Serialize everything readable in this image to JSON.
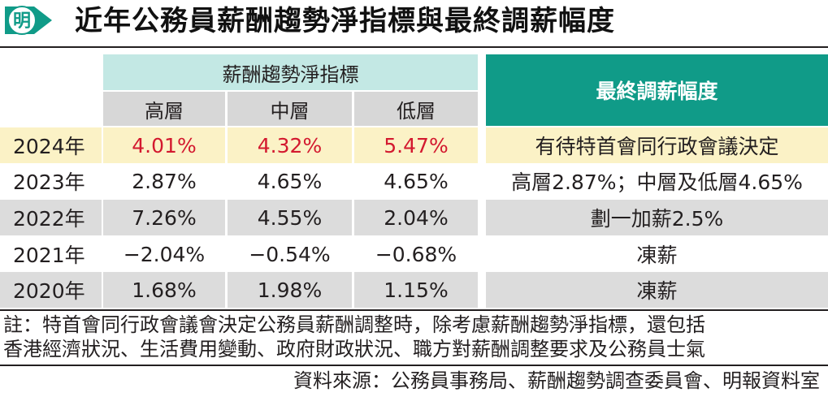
{
  "header": {
    "logo_text": "明",
    "title": "近年公務員薪酬趨勢淨指標與最終調薪幅度"
  },
  "table": {
    "group_header": "薪酬趨勢淨指標",
    "sub_headers": [
      "高層",
      "中層",
      "低層"
    ],
    "final_header": "最終調薪幅度",
    "rows": [
      {
        "year": "2024年",
        "high": "4.01%",
        "mid": "4.32%",
        "low": "5.47%",
        "final": "有待特首會同行政會議決定"
      },
      {
        "year": "2023年",
        "high": "2.87%",
        "mid": "4.65%",
        "low": "4.65%",
        "final": "高層2.87%；中層及低層4.65%"
      },
      {
        "year": "2022年",
        "high": "7.26%",
        "mid": "4.55%",
        "low": "2.04%",
        "final": "劃一加薪2.5%"
      },
      {
        "year": "2021年",
        "high": "−2.04%",
        "mid": "−0.54%",
        "low": "−0.68%",
        "final": "凍薪"
      },
      {
        "year": "2020年",
        "high": "1.68%",
        "mid": "1.98%",
        "low": "1.15%",
        "final": "凍薪"
      }
    ]
  },
  "notes": {
    "line1": "註：特首會同行政會議會決定公務員薪酬調整時，除考慮薪酬趨勢淨指標，還包括",
    "line2": "香港經濟狀況、生活費用變動、政府財政狀況、職方對薪酬調整要求及公務員士氣"
  },
  "source": "資料來源：公務員事務局、薪酬趨勢調查委員會、明報資料室",
  "colors": {
    "teal": "#109b88",
    "light_teal": "#c3e8e4",
    "gray": "#d7d7d7",
    "yellow": "#fbf2c6",
    "red": "#d3192f"
  }
}
